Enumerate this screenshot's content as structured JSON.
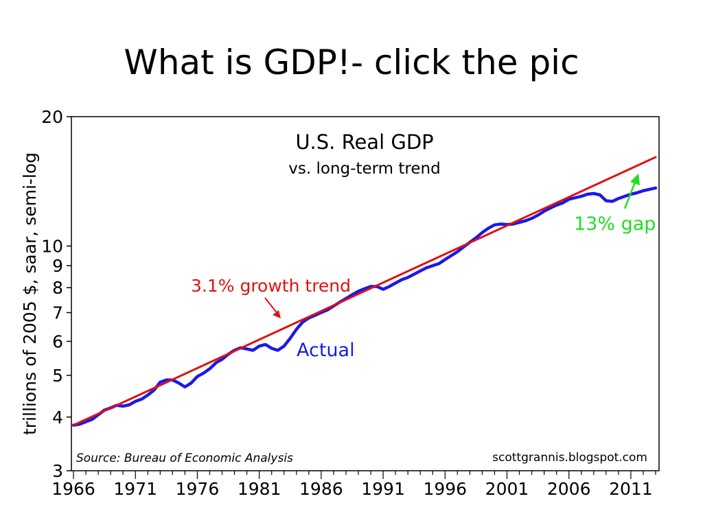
{
  "slide": {
    "title": "What is GDP!- click the pic"
  },
  "chart_data": {
    "type": "line",
    "title": "U.S. Real GDP",
    "subtitle": "vs. long-term trend",
    "ylabel": "trillions of 2005 $, saar, semi-log",
    "xlabel": "",
    "y_scale": "log",
    "ylim": [
      3,
      20
    ],
    "xlim": [
      1966,
      2013
    ],
    "y_ticks": [
      3,
      4,
      5,
      6,
      7,
      8,
      9,
      10,
      20
    ],
    "x_ticks": [
      1966,
      1971,
      1976,
      1981,
      1986,
      1991,
      1996,
      2001,
      2006,
      2011
    ],
    "grid": false,
    "source": "Source:  Bureau of Economic Analysis",
    "credit": "scottgrannis.blogspot.com",
    "colors": {
      "actual": "#1a1ae6",
      "trend": "#e01010",
      "gap": "#22dd22"
    },
    "annotations": {
      "trend_label": "3.1% growth trend",
      "actual_label": "Actual",
      "gap_label": "13% gap"
    },
    "series": [
      {
        "name": "Actual",
        "x": [
          1966.0,
          1966.5,
          1967.0,
          1967.5,
          1968.0,
          1968.5,
          1969.0,
          1969.5,
          1970.0,
          1970.5,
          1971.0,
          1971.5,
          1972.0,
          1972.5,
          1973.0,
          1973.5,
          1974.0,
          1974.5,
          1975.0,
          1975.5,
          1976.0,
          1976.5,
          1977.0,
          1977.5,
          1978.0,
          1978.5,
          1979.0,
          1979.5,
          1980.0,
          1980.5,
          1981.0,
          1981.5,
          1982.0,
          1982.5,
          1983.0,
          1983.5,
          1984.0,
          1984.5,
          1985.0,
          1985.5,
          1986.0,
          1986.5,
          1987.0,
          1987.5,
          1988.0,
          1988.5,
          1989.0,
          1989.5,
          1990.0,
          1990.5,
          1991.0,
          1991.5,
          1992.0,
          1992.5,
          1993.0,
          1993.5,
          1994.0,
          1994.5,
          1995.0,
          1995.5,
          1996.0,
          1996.5,
          1997.0,
          1997.5,
          1998.0,
          1998.5,
          1999.0,
          1999.5,
          2000.0,
          2000.5,
          2001.0,
          2001.5,
          2002.0,
          2002.5,
          2003.0,
          2003.5,
          2004.0,
          2004.5,
          2005.0,
          2005.5,
          2006.0,
          2006.5,
          2007.0,
          2007.5,
          2008.0,
          2008.5,
          2009.0,
          2009.5,
          2010.0,
          2010.5,
          2011.0,
          2011.5,
          2012.0,
          2012.5,
          2013.0
        ],
        "values": [
          3.83,
          3.85,
          3.9,
          3.95,
          4.05,
          4.15,
          4.2,
          4.26,
          4.24,
          4.27,
          4.35,
          4.4,
          4.5,
          4.62,
          4.82,
          4.88,
          4.88,
          4.8,
          4.7,
          4.8,
          4.97,
          5.06,
          5.18,
          5.35,
          5.45,
          5.6,
          5.72,
          5.8,
          5.76,
          5.72,
          5.85,
          5.9,
          5.78,
          5.72,
          5.85,
          6.1,
          6.4,
          6.65,
          6.8,
          6.9,
          7.0,
          7.1,
          7.25,
          7.4,
          7.55,
          7.7,
          7.85,
          7.95,
          8.05,
          8.05,
          7.93,
          8.05,
          8.2,
          8.35,
          8.45,
          8.6,
          8.75,
          8.9,
          9.0,
          9.1,
          9.3,
          9.5,
          9.7,
          9.95,
          10.2,
          10.45,
          10.75,
          11.0,
          11.2,
          11.25,
          11.22,
          11.25,
          11.35,
          11.45,
          11.6,
          11.8,
          12.05,
          12.25,
          12.45,
          12.6,
          12.85,
          12.95,
          13.05,
          13.2,
          13.25,
          13.15,
          12.75,
          12.7,
          12.9,
          13.05,
          13.2,
          13.3,
          13.45,
          13.55,
          13.65
        ]
      },
      {
        "name": "3.1% growth trend",
        "x": [
          1966.0,
          2013.0
        ],
        "values": [
          3.83,
          16.1
        ]
      }
    ]
  }
}
